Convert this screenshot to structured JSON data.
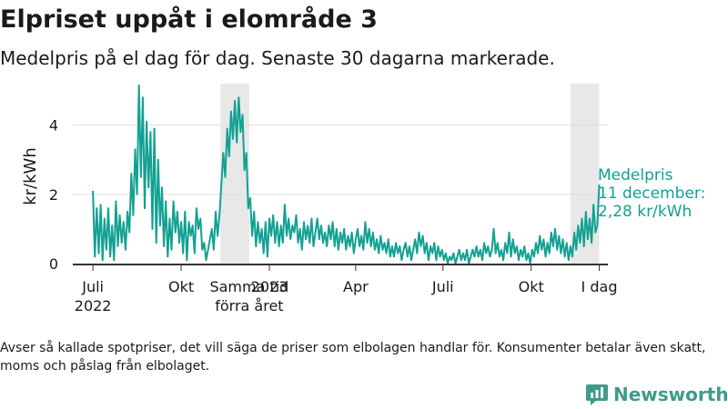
{
  "title": "Elpriset uppåt i elområde 3",
  "subtitle": "Medelpris på el dag för dag.  Senaste 30 dagarna markerade.",
  "footnote": "Avser så kallade spotpriser, det vill säga de priser som elbolagen handlar för. Konsumenter betalar även skatt, moms och påslag från elbolaget.",
  "brand": "Newsworthy",
  "colors": {
    "line": "#12a192",
    "band": "#e8e8e8",
    "grid": "#dddddd",
    "axis": "#333333",
    "text": "#1a1a1a",
    "brand": "#3e9c86"
  },
  "chart_data": {
    "type": "line",
    "title": "Elpriset uppåt i elområde 3",
    "ylabel": "kr/kWh",
    "xlabel": "",
    "ylim": [
      0,
      5.2
    ],
    "yticks": [
      0,
      2,
      4
    ],
    "xlim": [
      "2022-06-10",
      "2023-12-20"
    ],
    "xticks": [
      {
        "date": "2022-07-01",
        "label": "Juli",
        "sublabel": "2022"
      },
      {
        "date": "2022-10-01",
        "label": "Okt",
        "sublabel": ""
      },
      {
        "date": "2023-01-01",
        "label": "2023",
        "sublabel": ""
      },
      {
        "date": "2023-04-01",
        "label": "Apr",
        "sublabel": ""
      },
      {
        "date": "2023-07-01",
        "label": "Juli",
        "sublabel": ""
      },
      {
        "date": "2023-10-01",
        "label": "Okt",
        "sublabel": ""
      },
      {
        "date": "2023-12-11",
        "label": "I dag",
        "sublabel": ""
      }
    ],
    "extra_label": {
      "date": "2022-12-11",
      "text": "Samma tid förra året"
    },
    "highlight_bands": [
      {
        "start": "2022-11-11",
        "end": "2022-12-11"
      },
      {
        "start": "2023-11-11",
        "end": "2023-12-11"
      }
    ],
    "annotation": {
      "date": "2023-12-11",
      "value": 2.28,
      "text": "Medelpris 11 december: 2,28 kr/kWh",
      "lines": [
        "Medelpris",
        "11 december:",
        "2,28 kr/kWh"
      ]
    },
    "series": [
      {
        "name": "",
        "points": [
          [
            "2022-07-01",
            2.1
          ],
          [
            "2022-07-03",
            0.2
          ],
          [
            "2022-07-05",
            1.6
          ],
          [
            "2022-07-07",
            0.3
          ],
          [
            "2022-07-09",
            1.7
          ],
          [
            "2022-07-11",
            0.1
          ],
          [
            "2022-07-13",
            1.3
          ],
          [
            "2022-07-15",
            0.4
          ],
          [
            "2022-07-17",
            1.6
          ],
          [
            "2022-07-19",
            0.2
          ],
          [
            "2022-07-21",
            1.1
          ],
          [
            "2022-07-23",
            0.1
          ],
          [
            "2022-07-25",
            1.8
          ],
          [
            "2022-07-27",
            0.5
          ],
          [
            "2022-07-29",
            1.4
          ],
          [
            "2022-07-31",
            0.6
          ],
          [
            "2022-08-02",
            1.2
          ],
          [
            "2022-08-04",
            0.4
          ],
          [
            "2022-08-06",
            1.5
          ],
          [
            "2022-08-08",
            0.9
          ],
          [
            "2022-08-10",
            2.6
          ],
          [
            "2022-08-12",
            1.4
          ],
          [
            "2022-08-14",
            3.3
          ],
          [
            "2022-08-16",
            2.0
          ],
          [
            "2022-08-18",
            5.15
          ],
          [
            "2022-08-20",
            2.5
          ],
          [
            "2022-08-22",
            4.8
          ],
          [
            "2022-08-24",
            1.6
          ],
          [
            "2022-08-26",
            4.1
          ],
          [
            "2022-08-28",
            2.2
          ],
          [
            "2022-08-30",
            3.8
          ],
          [
            "2022-09-01",
            1.0
          ],
          [
            "2022-09-03",
            3.9
          ],
          [
            "2022-09-05",
            0.6
          ],
          [
            "2022-09-07",
            3.0
          ],
          [
            "2022-09-09",
            1.1
          ],
          [
            "2022-09-11",
            2.2
          ],
          [
            "2022-09-13",
            0.5
          ],
          [
            "2022-09-15",
            1.8
          ],
          [
            "2022-09-17",
            0.2
          ],
          [
            "2022-09-19",
            1.3
          ],
          [
            "2022-09-21",
            0.4
          ],
          [
            "2022-09-23",
            1.8
          ],
          [
            "2022-09-25",
            0.9
          ],
          [
            "2022-09-27",
            1.5
          ],
          [
            "2022-09-29",
            0.6
          ],
          [
            "2022-10-01",
            1.2
          ],
          [
            "2022-10-03",
            0.3
          ],
          [
            "2022-10-05",
            1.5
          ],
          [
            "2022-10-07",
            0.1
          ],
          [
            "2022-10-09",
            1.2
          ],
          [
            "2022-10-11",
            0.8
          ],
          [
            "2022-10-13",
            1.1
          ],
          [
            "2022-10-15",
            0.3
          ],
          [
            "2022-10-17",
            1.6
          ],
          [
            "2022-10-19",
            1.0
          ],
          [
            "2022-10-21",
            1.3
          ],
          [
            "2022-10-23",
            0.4
          ],
          [
            "2022-10-25",
            0.6
          ],
          [
            "2022-10-27",
            0.1
          ],
          [
            "2022-10-29",
            0.4
          ],
          [
            "2022-10-31",
            0.7
          ],
          [
            "2022-11-02",
            1.0
          ],
          [
            "2022-11-04",
            0.4
          ],
          [
            "2022-11-06",
            1.5
          ],
          [
            "2022-11-08",
            0.8
          ],
          [
            "2022-11-10",
            1.4
          ],
          [
            "2022-11-12",
            2.3
          ],
          [
            "2022-11-14",
            3.2
          ],
          [
            "2022-11-16",
            2.5
          ],
          [
            "2022-11-18",
            3.9
          ],
          [
            "2022-11-20",
            3.1
          ],
          [
            "2022-11-22",
            4.4
          ],
          [
            "2022-11-24",
            3.6
          ],
          [
            "2022-11-26",
            4.7
          ],
          [
            "2022-11-28",
            3.5
          ],
          [
            "2022-11-30",
            4.8
          ],
          [
            "2022-12-02",
            3.8
          ],
          [
            "2022-12-04",
            4.3
          ],
          [
            "2022-12-06",
            2.7
          ],
          [
            "2022-12-08",
            3.2
          ],
          [
            "2022-12-10",
            1.6
          ],
          [
            "2022-12-12",
            1.9
          ],
          [
            "2022-12-14",
            0.8
          ],
          [
            "2022-12-16",
            1.5
          ],
          [
            "2022-12-18",
            0.5
          ],
          [
            "2022-12-20",
            1.2
          ],
          [
            "2022-12-22",
            0.6
          ],
          [
            "2022-12-24",
            1.0
          ],
          [
            "2022-12-26",
            0.3
          ],
          [
            "2022-12-28",
            1.2
          ],
          [
            "2022-12-30",
            0.2
          ],
          [
            "2023-01-01",
            1.3
          ],
          [
            "2023-01-03",
            0.8
          ],
          [
            "2023-01-05",
            1.4
          ],
          [
            "2023-01-07",
            0.6
          ],
          [
            "2023-01-09",
            1.2
          ],
          [
            "2023-01-11",
            0.5
          ],
          [
            "2023-01-13",
            1.1
          ],
          [
            "2023-01-15",
            0.6
          ],
          [
            "2023-01-17",
            1.7
          ],
          [
            "2023-01-19",
            0.8
          ],
          [
            "2023-01-21",
            1.3
          ],
          [
            "2023-01-23",
            0.7
          ],
          [
            "2023-01-25",
            1.1
          ],
          [
            "2023-01-27",
            0.9
          ],
          [
            "2023-01-29",
            1.4
          ],
          [
            "2023-01-31",
            0.6
          ],
          [
            "2023-02-02",
            1.0
          ],
          [
            "2023-02-04",
            0.4
          ],
          [
            "2023-02-06",
            1.2
          ],
          [
            "2023-02-08",
            0.7
          ],
          [
            "2023-02-10",
            1.1
          ],
          [
            "2023-02-12",
            0.6
          ],
          [
            "2023-02-14",
            1.3
          ],
          [
            "2023-02-16",
            0.5
          ],
          [
            "2023-02-18",
            0.9
          ],
          [
            "2023-02-20",
            1.3
          ],
          [
            "2023-02-22",
            0.7
          ],
          [
            "2023-02-24",
            1.1
          ],
          [
            "2023-02-26",
            0.6
          ],
          [
            "2023-02-28",
            0.9
          ],
          [
            "2023-03-02",
            0.5
          ],
          [
            "2023-03-04",
            1.1
          ],
          [
            "2023-03-06",
            0.7
          ],
          [
            "2023-03-08",
            1.2
          ],
          [
            "2023-03-10",
            0.5
          ],
          [
            "2023-03-12",
            1.0
          ],
          [
            "2023-03-14",
            0.4
          ],
          [
            "2023-03-16",
            0.9
          ],
          [
            "2023-03-18",
            0.6
          ],
          [
            "2023-03-20",
            1.0
          ],
          [
            "2023-03-22",
            0.4
          ],
          [
            "2023-03-24",
            0.8
          ],
          [
            "2023-03-26",
            0.5
          ],
          [
            "2023-03-28",
            0.9
          ],
          [
            "2023-03-30",
            0.3
          ],
          [
            "2023-04-01",
            0.7
          ],
          [
            "2023-04-03",
            1.0
          ],
          [
            "2023-04-05",
            0.5
          ],
          [
            "2023-04-07",
            0.8
          ],
          [
            "2023-04-09",
            0.4
          ],
          [
            "2023-04-11",
            1.2
          ],
          [
            "2023-04-13",
            0.6
          ],
          [
            "2023-04-15",
            1.0
          ],
          [
            "2023-04-17",
            0.5
          ],
          [
            "2023-04-19",
            0.9
          ],
          [
            "2023-04-21",
            0.4
          ],
          [
            "2023-04-23",
            0.7
          ],
          [
            "2023-04-25",
            0.3
          ],
          [
            "2023-04-27",
            0.8
          ],
          [
            "2023-04-29",
            0.4
          ],
          [
            "2023-05-01",
            0.6
          ],
          [
            "2023-05-03",
            0.3
          ],
          [
            "2023-05-05",
            0.7
          ],
          [
            "2023-05-07",
            0.2
          ],
          [
            "2023-05-09",
            0.5
          ],
          [
            "2023-05-11",
            0.2
          ],
          [
            "2023-05-13",
            0.6
          ],
          [
            "2023-05-15",
            0.3
          ],
          [
            "2023-05-17",
            0.5
          ],
          [
            "2023-05-19",
            0.1
          ],
          [
            "2023-05-21",
            0.4
          ],
          [
            "2023-05-23",
            0.6
          ],
          [
            "2023-05-25",
            0.2
          ],
          [
            "2023-05-27",
            0.5
          ],
          [
            "2023-05-29",
            0.1
          ],
          [
            "2023-05-31",
            0.4
          ],
          [
            "2023-06-02",
            0.7
          ],
          [
            "2023-06-04",
            0.3
          ],
          [
            "2023-06-06",
            0.9
          ],
          [
            "2023-06-08",
            0.5
          ],
          [
            "2023-06-10",
            0.8
          ],
          [
            "2023-06-12",
            0.3
          ],
          [
            "2023-06-14",
            0.6
          ],
          [
            "2023-06-16",
            0.1
          ],
          [
            "2023-06-18",
            0.5
          ],
          [
            "2023-06-20",
            0.3
          ],
          [
            "2023-06-22",
            0.6
          ],
          [
            "2023-06-24",
            0.1
          ],
          [
            "2023-06-26",
            0.5
          ],
          [
            "2023-06-28",
            0.2
          ],
          [
            "2023-06-30",
            0.4
          ],
          [
            "2023-07-02",
            0.1
          ],
          [
            "2023-07-04",
            0.3
          ],
          [
            "2023-07-06",
            0.0
          ],
          [
            "2023-07-08",
            0.2
          ],
          [
            "2023-07-10",
            0.1
          ],
          [
            "2023-07-12",
            0.3
          ],
          [
            "2023-07-14",
            0.0
          ],
          [
            "2023-07-16",
            0.2
          ],
          [
            "2023-07-18",
            0.4
          ],
          [
            "2023-07-20",
            0.1
          ],
          [
            "2023-07-22",
            0.3
          ],
          [
            "2023-07-24",
            0.1
          ],
          [
            "2023-07-26",
            0.4
          ],
          [
            "2023-07-28",
            0.0
          ],
          [
            "2023-07-30",
            0.2
          ],
          [
            "2023-08-01",
            0.4
          ],
          [
            "2023-08-03",
            0.2
          ],
          [
            "2023-08-05",
            0.5
          ],
          [
            "2023-08-07",
            0.2
          ],
          [
            "2023-08-09",
            0.4
          ],
          [
            "2023-08-11",
            0.1
          ],
          [
            "2023-08-13",
            0.6
          ],
          [
            "2023-08-15",
            0.3
          ],
          [
            "2023-08-17",
            0.5
          ],
          [
            "2023-08-19",
            0.2
          ],
          [
            "2023-08-21",
            0.4
          ],
          [
            "2023-08-23",
            1.0
          ],
          [
            "2023-08-25",
            0.3
          ],
          [
            "2023-08-27",
            0.6
          ],
          [
            "2023-08-29",
            0.2
          ],
          [
            "2023-08-31",
            0.4
          ],
          [
            "2023-09-02",
            0.1
          ],
          [
            "2023-09-04",
            0.6
          ],
          [
            "2023-09-06",
            0.3
          ],
          [
            "2023-09-08",
            0.9
          ],
          [
            "2023-09-10",
            0.2
          ],
          [
            "2023-09-12",
            0.7
          ],
          [
            "2023-09-14",
            0.3
          ],
          [
            "2023-09-16",
            0.5
          ],
          [
            "2023-09-18",
            0.1
          ],
          [
            "2023-09-20",
            0.4
          ],
          [
            "2023-09-22",
            0.2
          ],
          [
            "2023-09-24",
            0.5
          ],
          [
            "2023-09-26",
            0.1
          ],
          [
            "2023-09-28",
            0.3
          ],
          [
            "2023-09-30",
            0.0
          ],
          [
            "2023-10-02",
            0.4
          ],
          [
            "2023-10-04",
            0.2
          ],
          [
            "2023-10-06",
            0.6
          ],
          [
            "2023-10-08",
            0.3
          ],
          [
            "2023-10-10",
            0.8
          ],
          [
            "2023-10-12",
            0.4
          ],
          [
            "2023-10-14",
            0.7
          ],
          [
            "2023-10-16",
            0.2
          ],
          [
            "2023-10-18",
            0.6
          ],
          [
            "2023-10-20",
            0.3
          ],
          [
            "2023-10-22",
            0.9
          ],
          [
            "2023-10-24",
            0.5
          ],
          [
            "2023-10-26",
            1.0
          ],
          [
            "2023-10-28",
            0.4
          ],
          [
            "2023-10-30",
            0.8
          ],
          [
            "2023-11-01",
            0.3
          ],
          [
            "2023-11-03",
            0.7
          ],
          [
            "2023-11-05",
            0.2
          ],
          [
            "2023-11-07",
            0.6
          ],
          [
            "2023-11-09",
            0.1
          ],
          [
            "2023-11-11",
            0.5
          ],
          [
            "2023-11-13",
            0.2
          ],
          [
            "2023-11-15",
            0.9
          ],
          [
            "2023-11-17",
            0.4
          ],
          [
            "2023-11-19",
            1.1
          ],
          [
            "2023-11-21",
            0.6
          ],
          [
            "2023-11-23",
            1.3
          ],
          [
            "2023-11-25",
            0.5
          ],
          [
            "2023-11-27",
            1.5
          ],
          [
            "2023-11-29",
            0.7
          ],
          [
            "2023-12-01",
            1.3
          ],
          [
            "2023-12-03",
            0.6
          ],
          [
            "2023-12-05",
            1.7
          ],
          [
            "2023-12-07",
            0.9
          ],
          [
            "2023-12-09",
            1.1
          ],
          [
            "2023-12-11",
            2.28
          ]
        ]
      }
    ]
  }
}
